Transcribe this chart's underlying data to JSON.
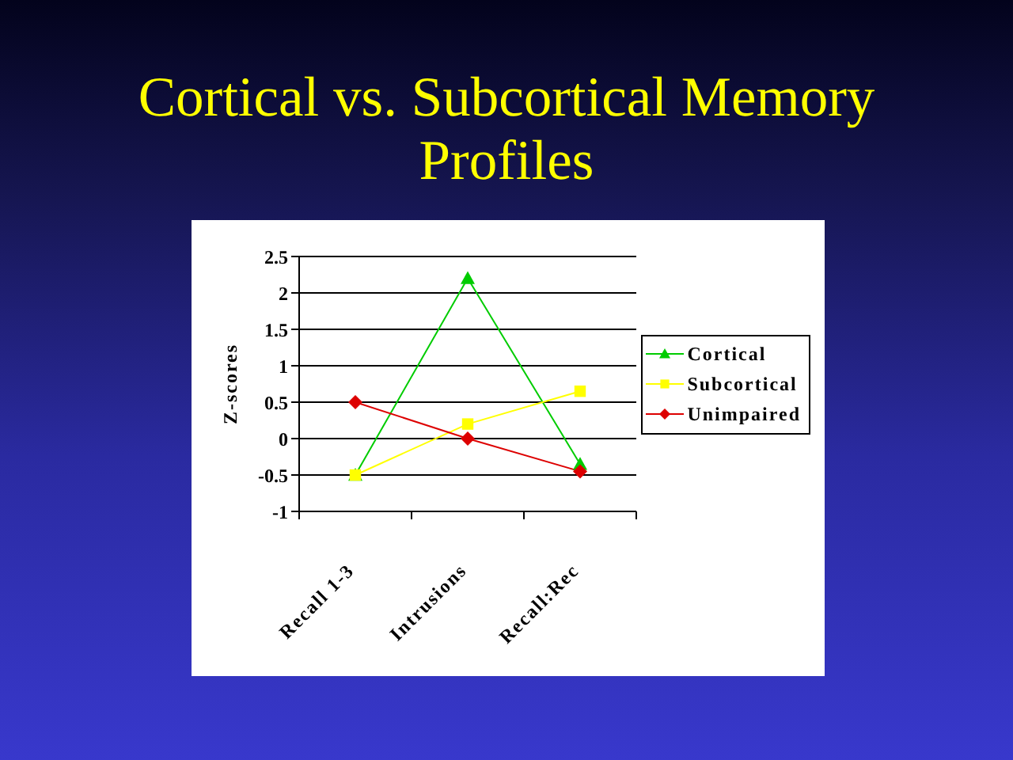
{
  "chart_data": {
    "type": "line",
    "title": "Cortical vs. Subcortical Memory Profiles",
    "ylabel": "Z-scores",
    "categories": [
      "Recall 1-3",
      "Intrusions",
      "Recall:Rec"
    ],
    "series": [
      {
        "name": "Cortical",
        "color": "#00cc00",
        "marker": "triangle",
        "values": [
          -0.5,
          2.2,
          -0.35
        ]
      },
      {
        "name": "Subcortical",
        "color": "#ffff00",
        "marker": "square",
        "values": [
          -0.5,
          0.2,
          0.65
        ]
      },
      {
        "name": "Unimpaired",
        "color": "#dd0000",
        "marker": "diamond",
        "values": [
          0.5,
          0,
          -0.45
        ]
      }
    ],
    "ylim": [
      -1,
      2.5
    ],
    "yticks": [
      -1,
      -0.5,
      0,
      0.5,
      1,
      1.5,
      2,
      2.5
    ],
    "grid": "y",
    "legend": "right"
  }
}
